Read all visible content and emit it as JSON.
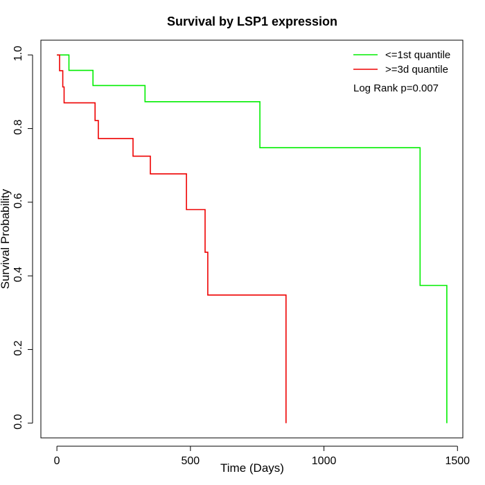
{
  "chart_data": {
    "type": "line",
    "title": "Survival by LSP1 expression",
    "xlabel": "Time (Days)",
    "ylabel": "Survival Probability",
    "xlim": [
      -60,
      1520
    ],
    "ylim": [
      -0.04,
      1.04
    ],
    "x_ticks": [
      0,
      500,
      1000,
      1500
    ],
    "x_tick_labels": [
      "0",
      "500",
      "1000",
      "1500"
    ],
    "y_ticks": [
      0,
      0.2,
      0.4,
      0.6,
      0.8,
      1.0
    ],
    "y_tick_labels": [
      "0.0",
      "0.2",
      "0.4",
      "0.6",
      "0.8",
      "1.0"
    ],
    "grid": false,
    "legend_position": "top-right",
    "annotation": "Log Rank p=0.007",
    "series": [
      {
        "name": "<=1st quantile",
        "color": "#00ee00",
        "x": [
          0,
          45,
          45,
          135,
          135,
          330,
          330,
          760,
          760,
          1360,
          1360,
          1460,
          1460
        ],
        "y": [
          1.0,
          1.0,
          0.958,
          0.958,
          0.917,
          0.917,
          0.873,
          0.873,
          0.748,
          0.748,
          0.374,
          0.374,
          0.0
        ]
      },
      {
        "name": ">=3d quantile",
        "color": "#ee0000",
        "x": [
          0,
          10,
          10,
          22,
          22,
          27,
          27,
          143,
          143,
          155,
          155,
          285,
          285,
          350,
          350,
          485,
          485,
          555,
          555,
          565,
          565,
          858,
          858
        ],
        "y": [
          1.0,
          1.0,
          0.957,
          0.957,
          0.913,
          0.913,
          0.87,
          0.87,
          0.822,
          0.822,
          0.773,
          0.773,
          0.725,
          0.725,
          0.677,
          0.677,
          0.58,
          0.58,
          0.464,
          0.464,
          0.348,
          0.348,
          0.0
        ]
      }
    ]
  }
}
